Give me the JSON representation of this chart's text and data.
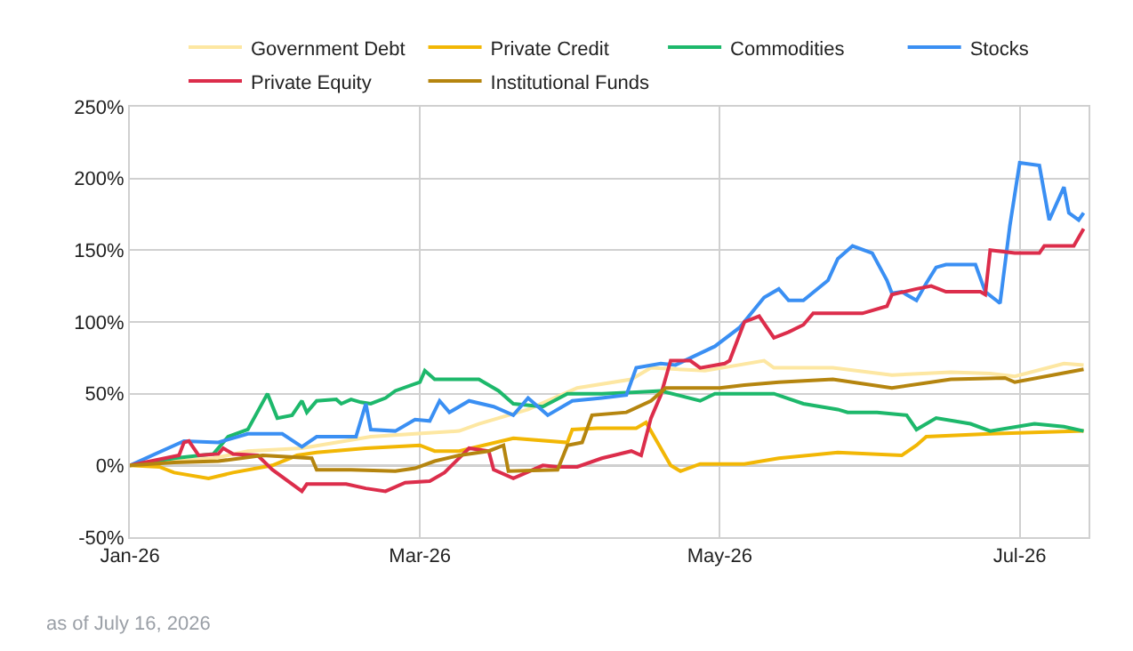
{
  "chart_data": {
    "type": "line",
    "legend": "top",
    "grid": true,
    "marker": "none",
    "line_style": "solid",
    "xlim": [
      "2026-01-01",
      "2026-07-15"
    ],
    "xticks": [
      {
        "value": "2026-01-01",
        "label": "Jan-26"
      },
      {
        "value": "2026-03-01",
        "label": "Mar-26"
      },
      {
        "value": "2026-05-01",
        "label": "May-26"
      },
      {
        "value": "2026-07-01",
        "label": "Jul-26"
      }
    ],
    "ylim": [
      -50,
      250
    ],
    "yticks": [
      {
        "value": -50,
        "label": "-50%"
      },
      {
        "value": 0,
        "label": "0%"
      },
      {
        "value": 50,
        "label": "50%"
      },
      {
        "value": 100,
        "label": "100%"
      },
      {
        "value": 150,
        "label": "150%"
      },
      {
        "value": 200,
        "label": "200%"
      },
      {
        "value": 250,
        "label": "250%"
      }
    ],
    "ref_lines": [
      {
        "axis": "y",
        "value": 0,
        "color": "#333333"
      }
    ],
    "annotations": [
      "as of July 16, 2026"
    ],
    "series": [
      {
        "name": "Government Debt",
        "color": "#fde7a2",
        "x": [
          "2026-01-01",
          "2026-01-10",
          "2026-01-18",
          "2026-01-25",
          "2026-02-05",
          "2026-02-19",
          "2026-02-28",
          "2026-03-09",
          "2026-03-13",
          "2026-03-23",
          "2026-04-02",
          "2026-04-13",
          "2026-04-17",
          "2026-04-28",
          "2026-05-10",
          "2026-05-12",
          "2026-05-24",
          "2026-06-05",
          "2026-06-17",
          "2026-06-25",
          "2026-06-30",
          "2026-07-10",
          "2026-07-14"
        ],
        "values": [
          0,
          3,
          5,
          10,
          12,
          20,
          22,
          24,
          29,
          39,
          54,
          60,
          68,
          66,
          73,
          68,
          68,
          63,
          65,
          64,
          62,
          71,
          70
        ]
      },
      {
        "name": "Private Credit",
        "color": "#f2b705",
        "x": [
          "2026-01-01",
          "2026-01-07",
          "2026-01-10",
          "2026-01-17",
          "2026-01-22",
          "2026-01-30",
          "2026-02-04",
          "2026-02-08",
          "2026-02-18",
          "2026-03-01",
          "2026-03-04",
          "2026-03-09",
          "2026-03-20",
          "2026-03-31",
          "2026-04-01",
          "2026-04-06",
          "2026-04-14",
          "2026-04-16",
          "2026-04-21",
          "2026-04-23",
          "2026-04-27",
          "2026-05-06",
          "2026-05-13",
          "2026-05-25",
          "2026-06-07",
          "2026-06-10",
          "2026-06-12",
          "2026-06-25",
          "2026-07-14"
        ],
        "values": [
          0,
          -1,
          -5,
          -9,
          -5,
          0,
          7,
          9,
          12,
          14,
          10,
          10,
          19,
          16,
          25,
          26,
          26,
          30,
          0,
          -4,
          1,
          1,
          5,
          9,
          7,
          14,
          20,
          22,
          24
        ]
      },
      {
        "name": "Commodities",
        "color": "#1db86b",
        "x": [
          "2026-01-01",
          "2026-01-10",
          "2026-01-18",
          "2026-01-21",
          "2026-01-25",
          "2026-01-29",
          "2026-01-31",
          "2026-02-03",
          "2026-02-05",
          "2026-02-06",
          "2026-02-08",
          "2026-02-12",
          "2026-02-13",
          "2026-02-15",
          "2026-02-17",
          "2026-02-19",
          "2026-02-22",
          "2026-02-24",
          "2026-03-01",
          "2026-03-02",
          "2026-03-04",
          "2026-03-07",
          "2026-03-13",
          "2026-03-17",
          "2026-03-20",
          "2026-03-26",
          "2026-03-31",
          "2026-04-07",
          "2026-04-14",
          "2026-04-19",
          "2026-04-27",
          "2026-04-30",
          "2026-05-06",
          "2026-05-12",
          "2026-05-18",
          "2026-05-25",
          "2026-05-27",
          "2026-06-02",
          "2026-06-08",
          "2026-06-10",
          "2026-06-14",
          "2026-06-21",
          "2026-06-25",
          "2026-07-04",
          "2026-07-10",
          "2026-07-14"
        ],
        "values": [
          0,
          5,
          8,
          20,
          25,
          50,
          33,
          35,
          45,
          37,
          45,
          46,
          43,
          46,
          44,
          43,
          47,
          52,
          58,
          66,
          60,
          60,
          60,
          52,
          43,
          41,
          50,
          50,
          51,
          52,
          45,
          50,
          50,
          50,
          43,
          39,
          37,
          37,
          35,
          25,
          33,
          29,
          24,
          29,
          27,
          24
        ]
      },
      {
        "name": "Stocks",
        "color": "#3a8ff3",
        "x": [
          "2026-01-01",
          "2026-01-12",
          "2026-01-19",
          "2026-01-25",
          "2026-02-01",
          "2026-02-05",
          "2026-02-08",
          "2026-02-16",
          "2026-02-18",
          "2026-02-19",
          "2026-02-24",
          "2026-02-28",
          "2026-03-03",
          "2026-03-05",
          "2026-03-07",
          "2026-03-11",
          "2026-03-16",
          "2026-03-20",
          "2026-03-23",
          "2026-03-27",
          "2026-04-01",
          "2026-04-07",
          "2026-04-12",
          "2026-04-14",
          "2026-04-19",
          "2026-04-22",
          "2026-04-30",
          "2026-05-05",
          "2026-05-10",
          "2026-05-13",
          "2026-05-15",
          "2026-05-18",
          "2026-05-23",
          "2026-05-25",
          "2026-05-28",
          "2026-06-01",
          "2026-06-04",
          "2026-06-05",
          "2026-06-07",
          "2026-06-10",
          "2026-06-12",
          "2026-06-14",
          "2026-06-16",
          "2026-06-22",
          "2026-06-24",
          "2026-06-27",
          "2026-06-29",
          "2026-07-01",
          "2026-07-05",
          "2026-07-07",
          "2026-07-10",
          "2026-07-11",
          "2026-07-13",
          "2026-07-14"
        ],
        "values": [
          0,
          17,
          16,
          22,
          22,
          13,
          20,
          20,
          43,
          25,
          24,
          32,
          31,
          45,
          37,
          45,
          41,
          35,
          47,
          35,
          45,
          47,
          49,
          68,
          71,
          70,
          83,
          96,
          117,
          123,
          115,
          115,
          129,
          144,
          153,
          148,
          129,
          120,
          121,
          115,
          127,
          138,
          140,
          140,
          121,
          113,
          167,
          211,
          209,
          171,
          194,
          176,
          171,
          176
        ]
      },
      {
        "name": "Private Equity",
        "color": "#dc2d4b",
        "x": [
          "2026-01-01",
          "2026-01-11",
          "2026-01-12",
          "2026-01-13",
          "2026-01-15",
          "2026-01-19",
          "2026-01-20",
          "2026-01-22",
          "2026-01-27",
          "2026-01-30",
          "2026-02-05",
          "2026-02-06",
          "2026-02-14",
          "2026-02-18",
          "2026-02-22",
          "2026-02-26",
          "2026-03-03",
          "2026-03-06",
          "2026-03-11",
          "2026-03-15",
          "2026-03-16",
          "2026-03-20",
          "2026-03-26",
          "2026-03-29",
          "2026-04-02",
          "2026-04-07",
          "2026-04-13",
          "2026-04-15",
          "2026-04-17",
          "2026-04-19",
          "2026-04-21",
          "2026-04-25",
          "2026-04-27",
          "2026-05-02",
          "2026-05-03",
          "2026-05-06",
          "2026-05-09",
          "2026-05-12",
          "2026-05-15",
          "2026-05-18",
          "2026-05-20",
          "2026-05-30",
          "2026-06-04",
          "2026-06-05",
          "2026-06-10",
          "2026-06-13",
          "2026-06-16",
          "2026-06-23",
          "2026-06-24",
          "2026-06-25",
          "2026-06-30",
          "2026-07-05",
          "2026-07-06",
          "2026-07-12",
          "2026-07-14"
        ],
        "values": [
          0,
          7,
          16,
          17,
          7,
          8,
          12,
          8,
          7,
          -3,
          -18,
          -13,
          -13,
          -16,
          -18,
          -12,
          -11,
          -5,
          12,
          10,
          -3,
          -9,
          0,
          -1,
          -1,
          5,
          10,
          7,
          33,
          49,
          73,
          73,
          68,
          71,
          73,
          100,
          104,
          89,
          93,
          98,
          106,
          106,
          111,
          119,
          123,
          125,
          121,
          121,
          119,
          150,
          148,
          148,
          153,
          153,
          165
        ]
      },
      {
        "name": "Institutional Funds",
        "color": "#b5850f",
        "x": [
          "2026-01-01",
          "2026-01-10",
          "2026-01-19",
          "2026-01-28",
          "2026-02-07",
          "2026-02-08",
          "2026-02-15",
          "2026-02-24",
          "2026-02-28",
          "2026-03-04",
          "2026-03-09",
          "2026-03-15",
          "2026-03-18",
          "2026-03-19",
          "2026-03-29",
          "2026-03-31",
          "2026-04-03",
          "2026-04-05",
          "2026-04-12",
          "2026-04-17",
          "2026-04-20",
          "2026-04-22",
          "2026-05-01",
          "2026-05-06",
          "2026-05-13",
          "2026-05-24",
          "2026-06-05",
          "2026-06-17",
          "2026-06-28",
          "2026-06-30",
          "2026-07-14"
        ],
        "values": [
          0,
          2,
          3,
          7,
          5,
          -3,
          -3,
          -4,
          -2,
          3,
          7,
          10,
          14,
          -4,
          -3,
          14,
          16,
          35,
          37,
          45,
          54,
          54,
          54,
          56,
          58,
          60,
          54,
          60,
          61,
          58,
          67
        ]
      }
    ]
  }
}
